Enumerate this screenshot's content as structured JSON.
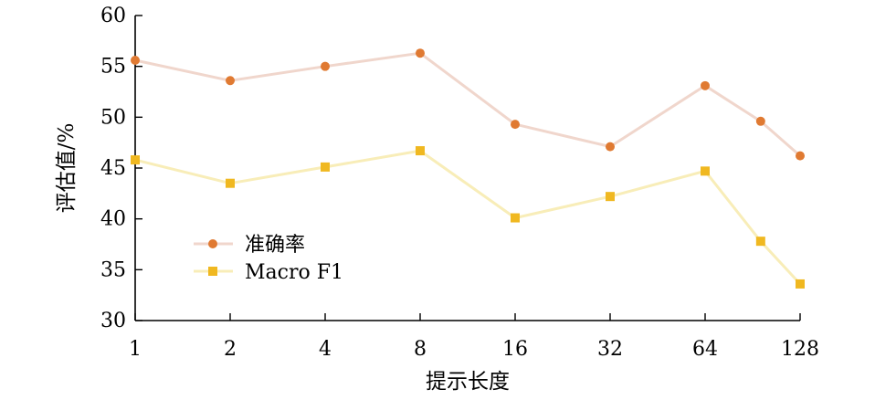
{
  "chart_data": {
    "type": "line",
    "title": "",
    "xlabel": "提示长度",
    "ylabel": "评估值/%",
    "x_ticks": [
      "1",
      "2",
      "4",
      "8",
      "16",
      "32",
      "64",
      "128"
    ],
    "y_ticks": [
      "30",
      "35",
      "40",
      "45",
      "50",
      "55",
      "60"
    ],
    "ylim": [
      30,
      60
    ],
    "x_scale": "log2",
    "x_range": [
      1,
      128
    ],
    "grid": false,
    "legend_position": "lower-left",
    "series": [
      {
        "name": "准确率",
        "color": "#f0d6cc",
        "marker_color": "#e07a32",
        "marker": "circle",
        "points": [
          {
            "x": 1,
            "y": 55.6
          },
          {
            "x": 2,
            "y": 53.6
          },
          {
            "x": 4,
            "y": 55.0
          },
          {
            "x": 8,
            "y": 56.3
          },
          {
            "x": 16,
            "y": 49.3
          },
          {
            "x": 32,
            "y": 47.1
          },
          {
            "x": 64,
            "y": 53.1
          },
          {
            "x": 96,
            "y": 49.6
          },
          {
            "x": 128,
            "y": 46.2
          }
        ]
      },
      {
        "name": "Macro F1",
        "color": "#f8edb8",
        "marker_color": "#f0b820",
        "marker": "square",
        "points": [
          {
            "x": 1,
            "y": 45.8
          },
          {
            "x": 2,
            "y": 43.5
          },
          {
            "x": 4,
            "y": 45.1
          },
          {
            "x": 8,
            "y": 46.7
          },
          {
            "x": 16,
            "y": 40.1
          },
          {
            "x": 32,
            "y": 42.2
          },
          {
            "x": 64,
            "y": 44.7
          },
          {
            "x": 96,
            "y": 37.8
          },
          {
            "x": 128,
            "y": 33.6
          }
        ]
      }
    ]
  }
}
